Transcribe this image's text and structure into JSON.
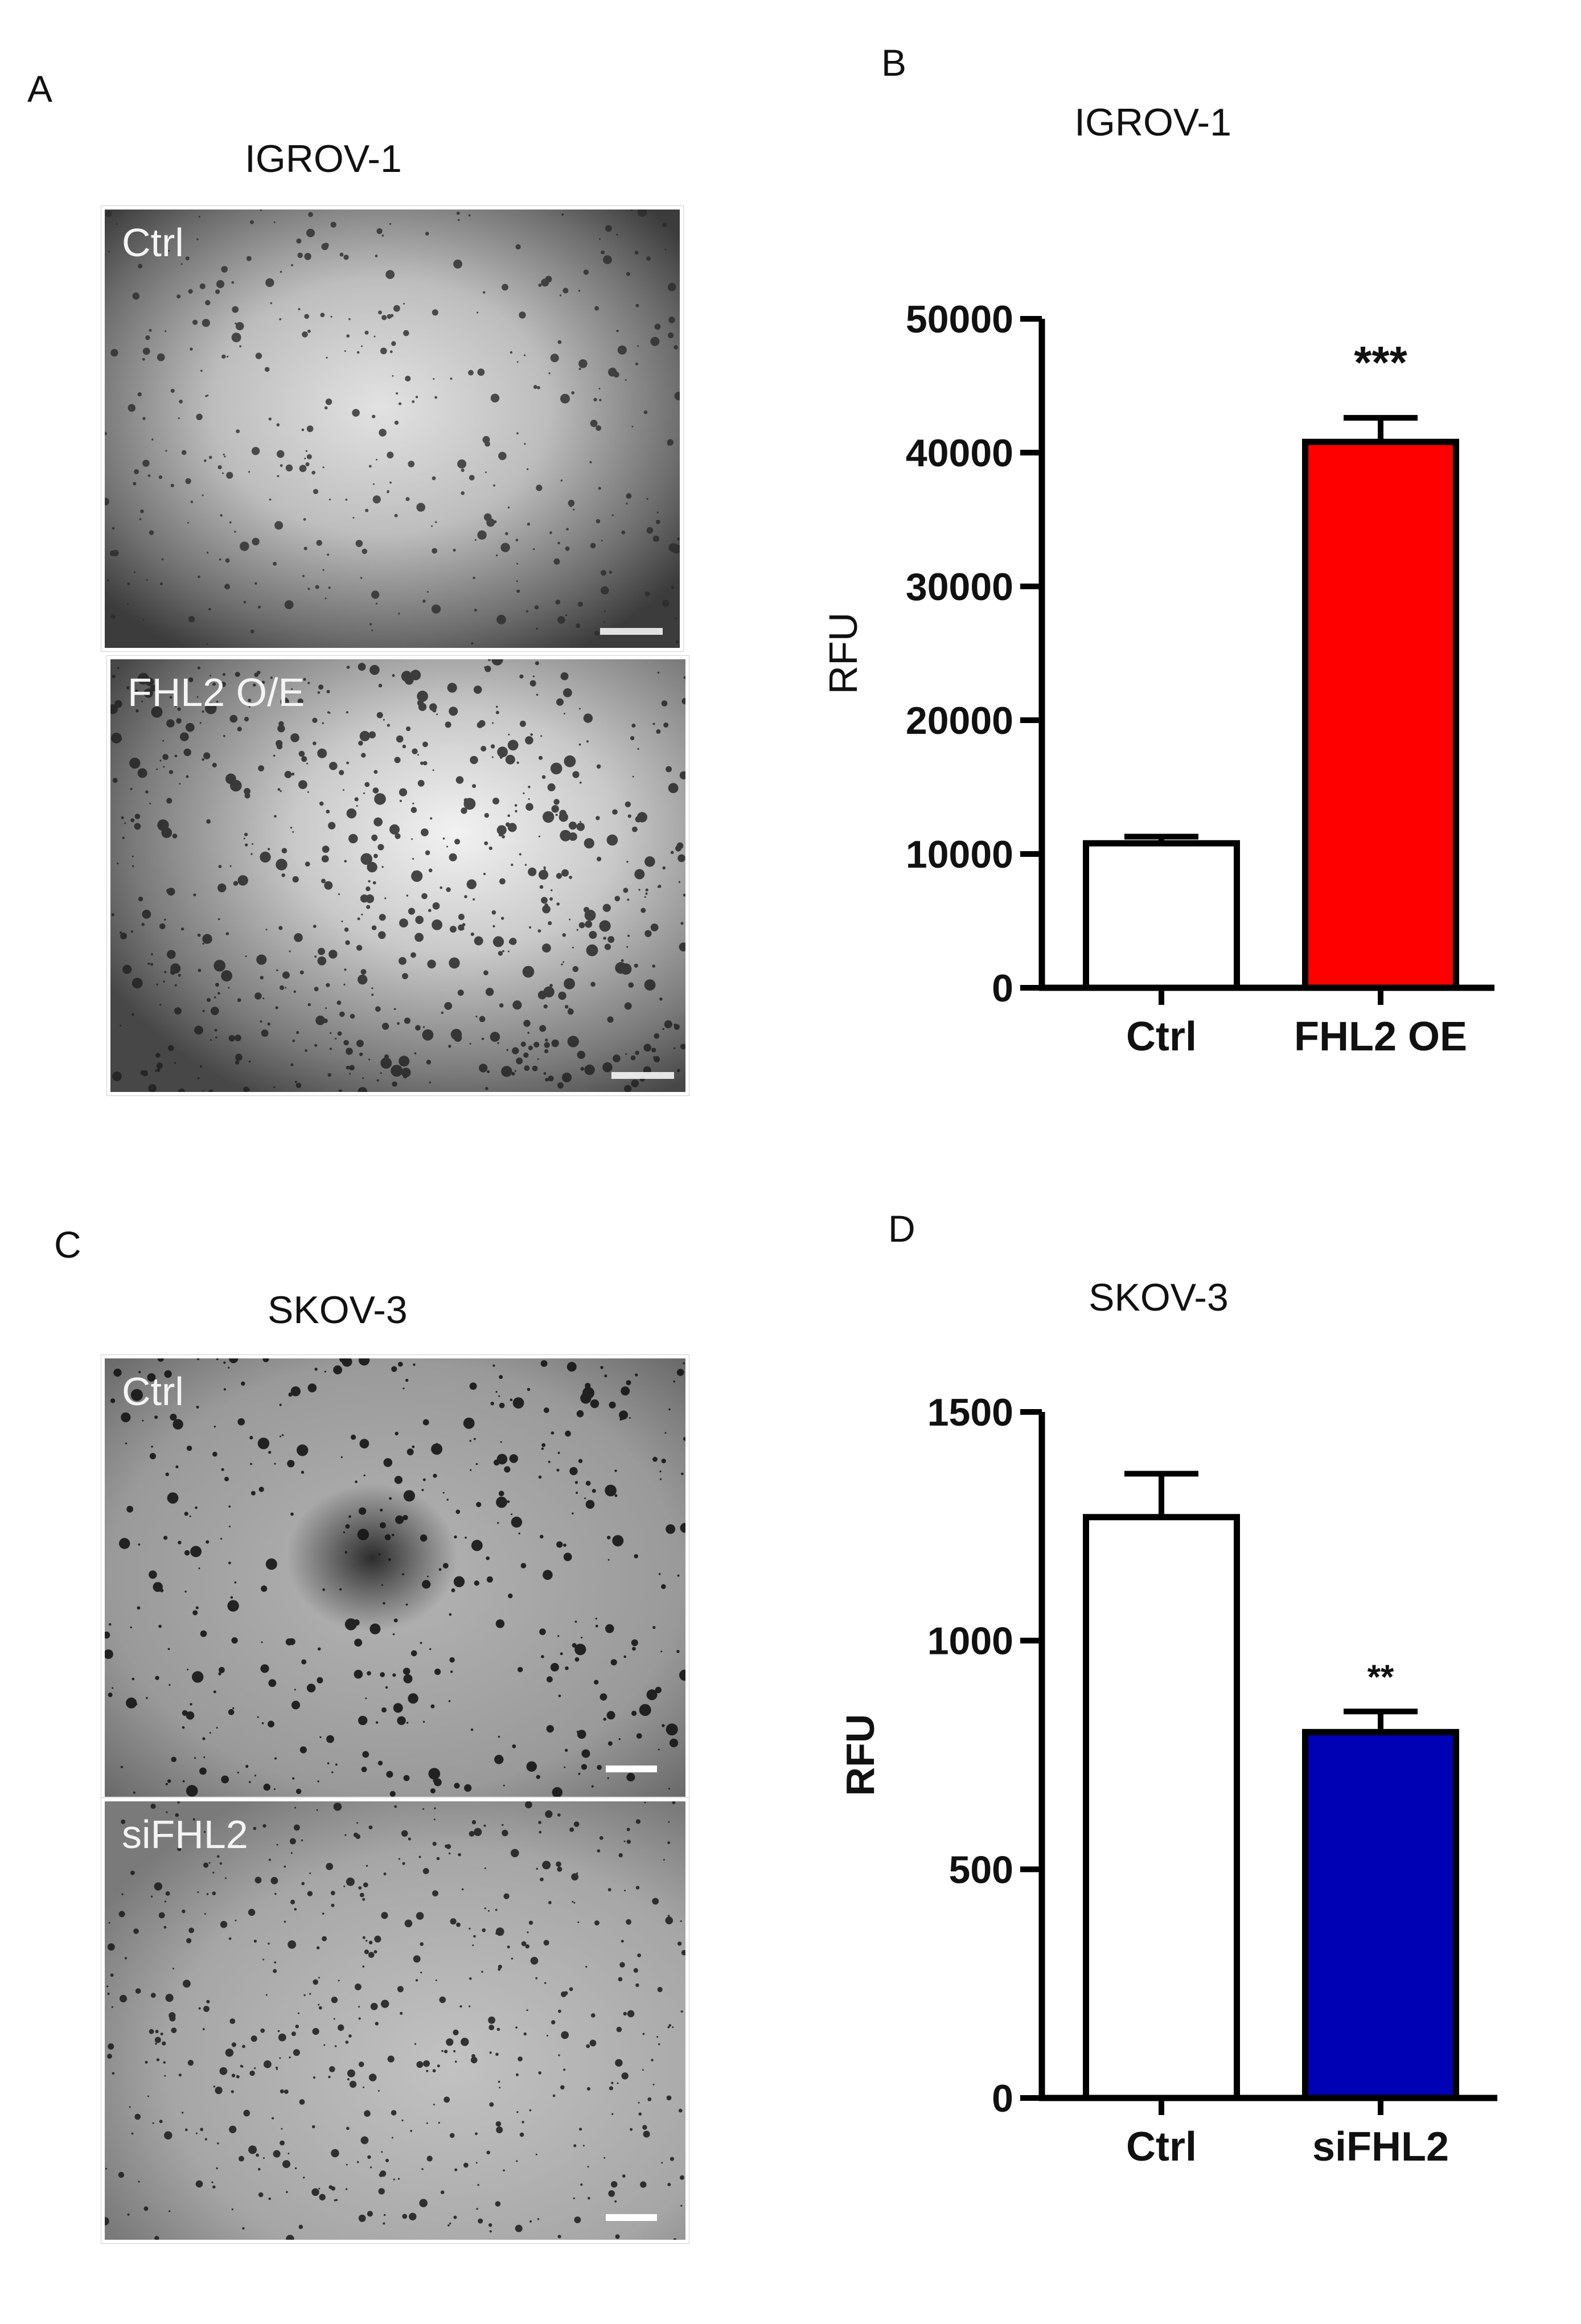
{
  "panels": {
    "A": {
      "letter": "A",
      "title": "IGROV-1",
      "images": [
        {
          "label": "Ctrl"
        },
        {
          "label": "FHL2 O/E"
        }
      ]
    },
    "B": {
      "letter": "B"
    },
    "C": {
      "letter": "C",
      "title": "SKOV-3",
      "images": [
        {
          "label": "Ctrl"
        },
        {
          "label": "siFHL2"
        }
      ]
    },
    "D": {
      "letter": "D"
    }
  },
  "chart_data": [
    {
      "type": "bar",
      "title": "IGROV-1",
      "ylabel": "RFU",
      "categories": [
        "Ctrl",
        "FHL2 OE"
      ],
      "values": [
        10800,
        40800
      ],
      "errors": [
        500,
        1800
      ],
      "colors": [
        "#ffffff",
        "#ff0000"
      ],
      "yticks": [
        0,
        10000,
        20000,
        30000,
        40000,
        50000
      ],
      "ylim": [
        0,
        50000
      ],
      "annotations": [
        "",
        "***"
      ]
    },
    {
      "type": "bar",
      "title": "SKOV-3",
      "ylabel": "RFU",
      "categories": [
        "Ctrl",
        "siFHL2"
      ],
      "values": [
        1270,
        800
      ],
      "errors": [
        95,
        45
      ],
      "colors": [
        "#ffffff",
        "#0000b4"
      ],
      "yticks": [
        0,
        500,
        1000,
        1500
      ],
      "ylim": [
        0,
        1500
      ],
      "annotations": [
        "",
        "**"
      ]
    }
  ]
}
